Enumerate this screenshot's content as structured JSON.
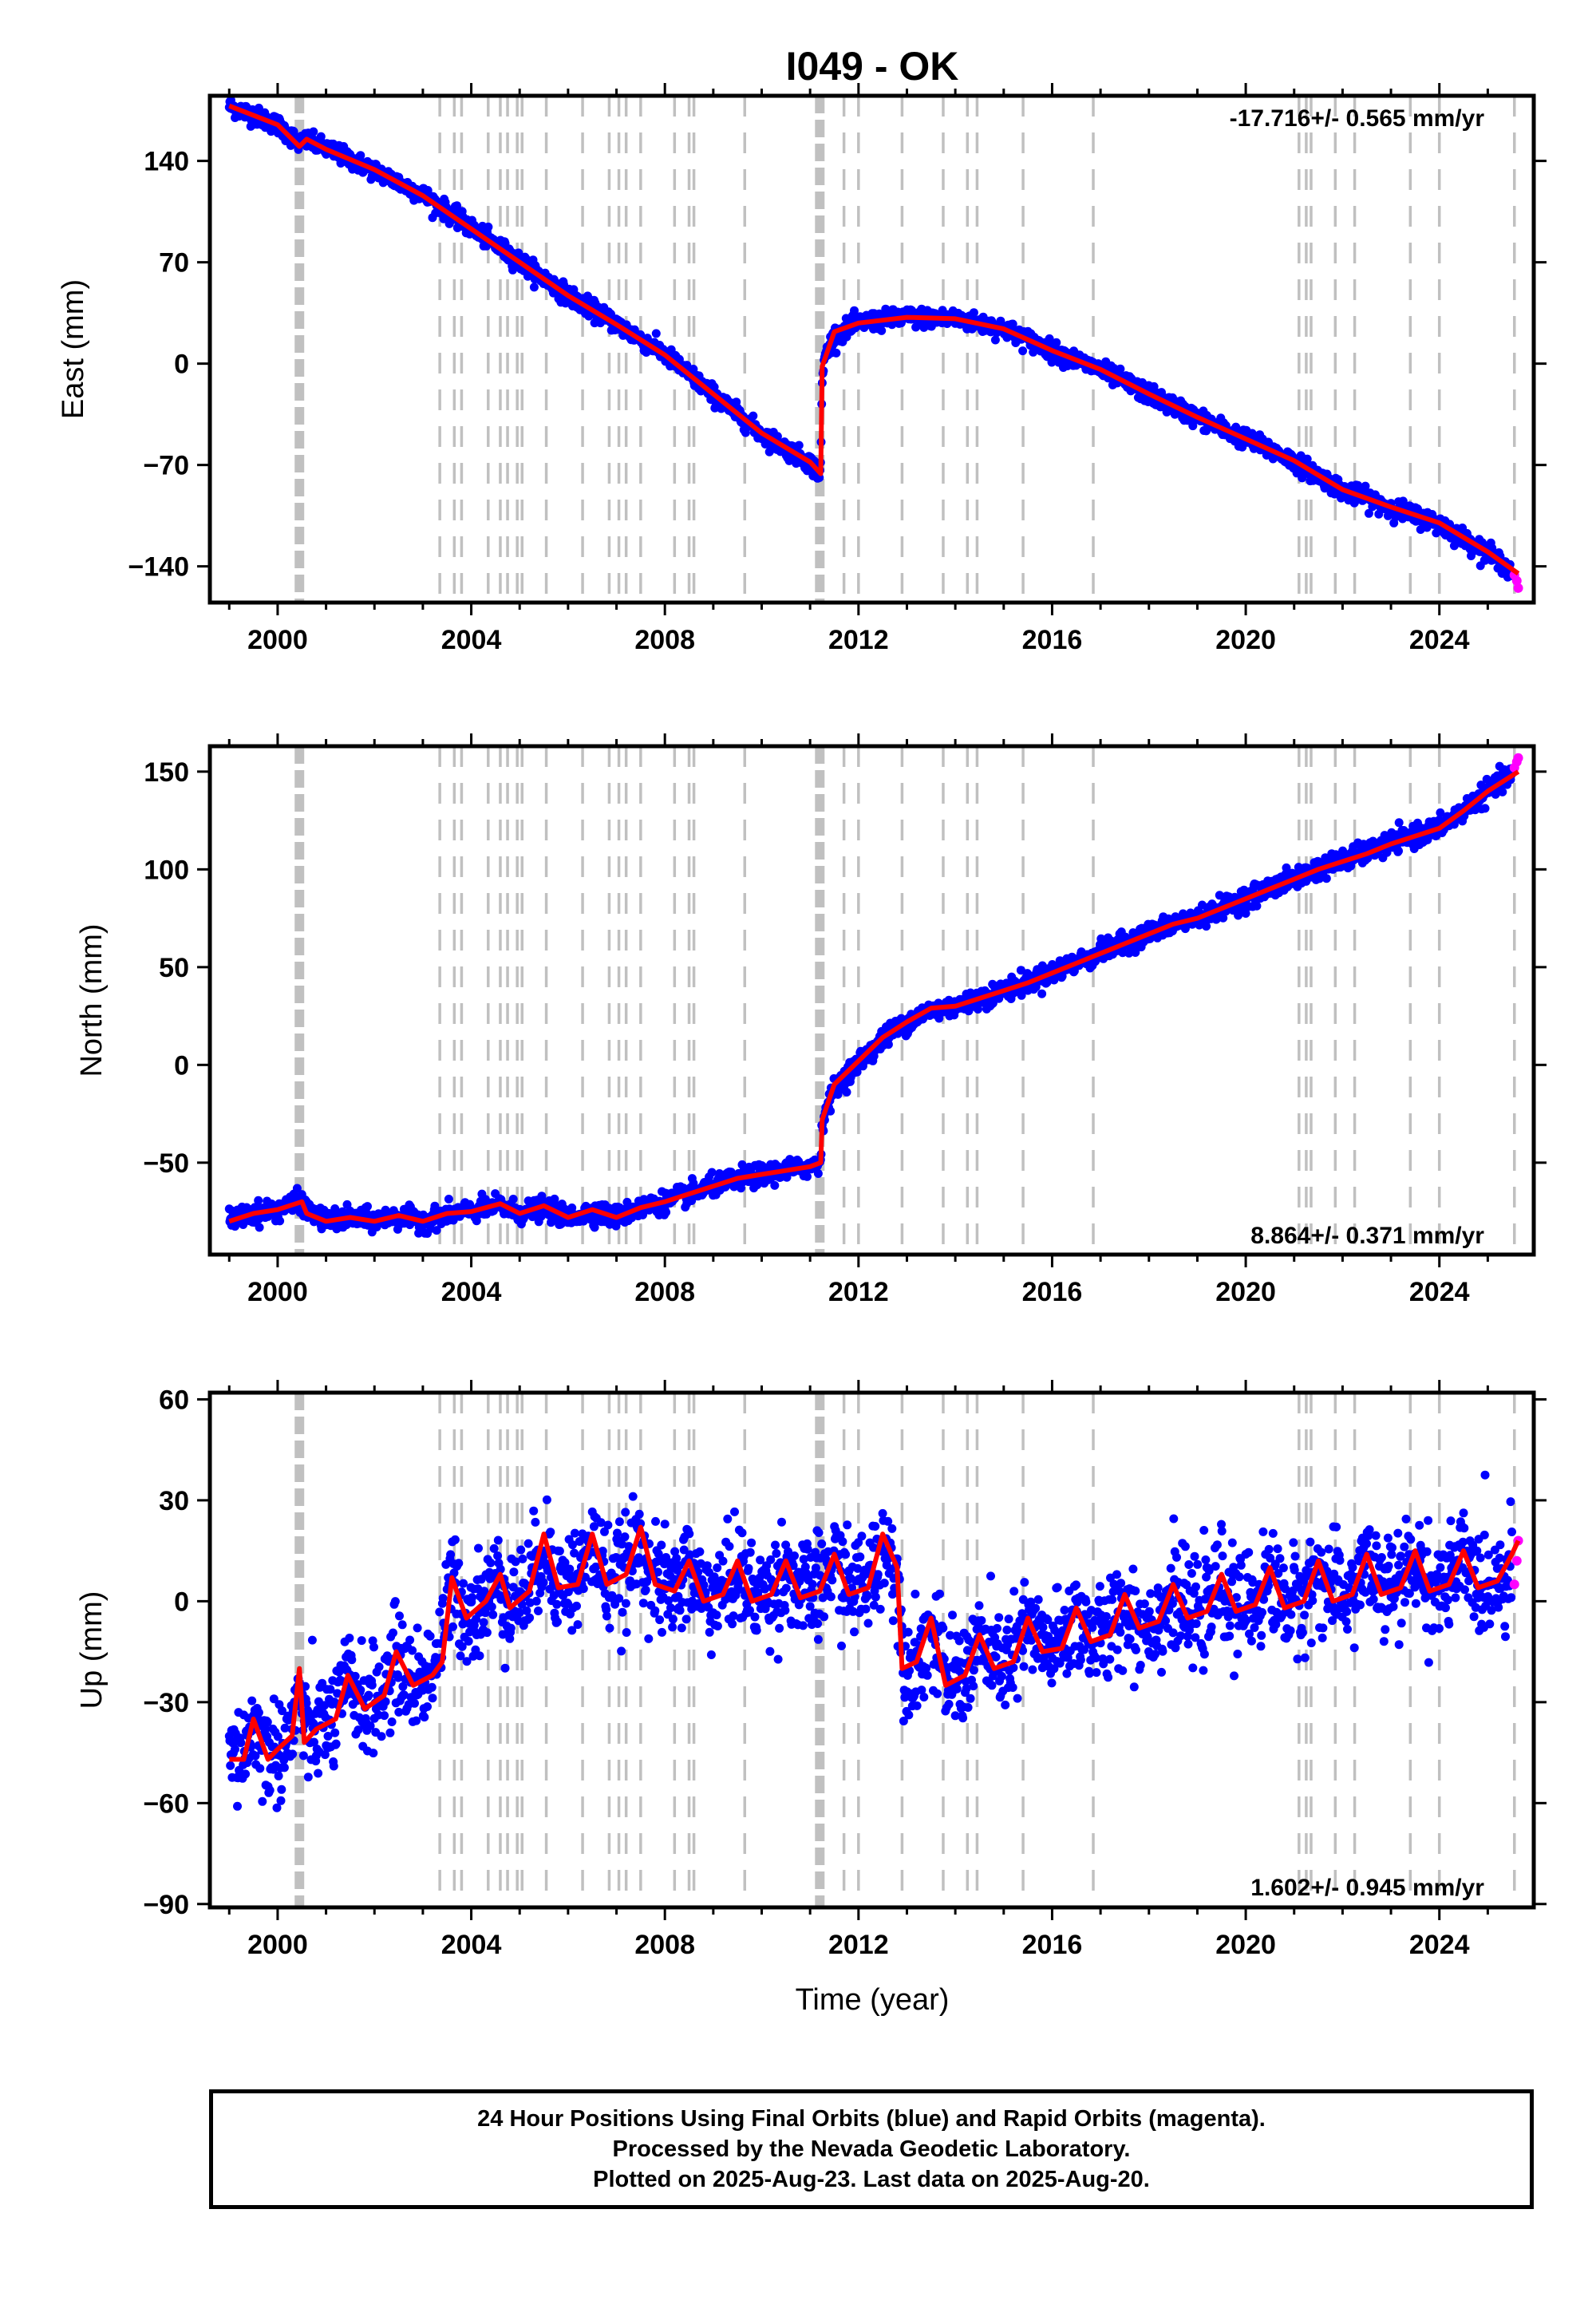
{
  "figure": {
    "title": "I049 - OK",
    "x_axis_label": "Time (year)"
  },
  "footer": {
    "line1": "24 Hour Positions Using Final Orbits (blue) and Rapid Orbits (magenta).",
    "line2": "Processed by the Nevada Geodetic Laboratory.",
    "line3": "Plotted on 2025-Aug-23. Last data on 2025-Aug-20."
  },
  "colors": {
    "final_orbits": "#0000ff",
    "rapid_orbits": "#ff00ff",
    "model_fit": "#ff0000",
    "event_lines": "#c0c0c0",
    "frame": "#000000"
  },
  "chart_data": [
    {
      "type": "scatter",
      "panel": "east",
      "ylabel": "East (mm)",
      "rate_label": "-17.716+/- 0.565 mm/yr",
      "xlim": [
        1998.6,
        2025.95
      ],
      "ylim": [
        -165,
        185
      ],
      "xticks": [
        2000,
        2004,
        2008,
        2012,
        2016,
        2020,
        2024
      ],
      "yticks": [
        140,
        70,
        0,
        -70,
        -140
      ],
      "ytick_labels": [
        "140",
        "70",
        "0",
        "−70",
        "−140"
      ],
      "grid": false,
      "series": [
        {
          "name": "Final Orbits (blue)",
          "x": [
            1999.0,
            2000.0,
            2000.4,
            2000.6,
            2001.0,
            2002.0,
            2003.0,
            2004.0,
            2005.0,
            2006.0,
            2007.0,
            2008.0,
            2009.0,
            2010.0,
            2011.0,
            2011.2,
            2011.3,
            2012.0,
            2013.0,
            2014.0,
            2015.0,
            2016.0,
            2017.0,
            2018.0,
            2019.0,
            2020.0,
            2021.0,
            2022.0,
            2023.0,
            2024.0,
            2025.0,
            2025.5
          ],
          "y": [
            178,
            165,
            158,
            152,
            150,
            132,
            118,
            95,
            72,
            48,
            28,
            8,
            -22,
            -50,
            -70,
            -80,
            8,
            28,
            32,
            31,
            25,
            8,
            -5,
            -22,
            -38,
            -52,
            -68,
            -88,
            -100,
            -112,
            -132,
            -145
          ]
        },
        {
          "name": "Rapid Orbits (magenta)",
          "x": [
            2025.55,
            2025.6,
            2025.63
          ],
          "y": [
            -146,
            -150,
            -155
          ]
        }
      ],
      "model_fit": {
        "x": [
          1999.0,
          2000.0,
          2000.45,
          2000.6,
          2001.0,
          2002.0,
          2003.0,
          2004.0,
          2005.0,
          2006.0,
          2007.0,
          2008.0,
          2009.0,
          2010.0,
          2011.0,
          2011.22,
          2011.25,
          2011.5,
          2012.0,
          2013.0,
          2014.0,
          2015.0,
          2016.0,
          2017.0,
          2018.0,
          2019.0,
          2020.0,
          2021.0,
          2022.0,
          2023.0,
          2024.0,
          2025.0,
          2025.63
        ],
        "y": [
          178,
          165,
          150,
          155,
          148,
          134,
          116,
          93,
          70,
          47,
          27,
          6,
          -21,
          -48,
          -68,
          -76,
          -2,
          22,
          28,
          32,
          31,
          24,
          9,
          -4,
          -21,
          -37,
          -52,
          -67,
          -87,
          -99,
          -110,
          -130,
          -145
        ]
      },
      "event_lines": [
        2000.45,
        2003.35,
        2003.65,
        2003.8,
        2004.35,
        2004.6,
        2004.75,
        2004.95,
        2005.05,
        2005.55,
        2006.3,
        2006.85,
        2007.05,
        2007.2,
        2007.5,
        2008.2,
        2008.5,
        2008.6,
        2009.65,
        2011.2,
        2011.7,
        2012.0,
        2012.9,
        2013.75,
        2014.25,
        2014.45,
        2015.4,
        2016.85,
        2021.1,
        2021.25,
        2021.35,
        2021.85,
        2022.25,
        2023.4,
        2024.0,
        2025.55
      ]
    },
    {
      "type": "scatter",
      "panel": "north",
      "ylabel": "North (mm)",
      "rate_label": "8.864+/- 0.371 mm/yr",
      "xlim": [
        1998.6,
        2025.95
      ],
      "ylim": [
        -97,
        163
      ],
      "xticks": [
        2000,
        2004,
        2008,
        2012,
        2016,
        2020,
        2024
      ],
      "yticks": [
        150,
        100,
        50,
        0,
        -50
      ],
      "ytick_labels": [
        "150",
        "100",
        "50",
        "0",
        "−50"
      ],
      "grid": false,
      "series": [
        {
          "name": "Final Orbits (blue)",
          "x": [
            1999.0,
            2000.0,
            2000.5,
            2001.0,
            2002.0,
            2003.0,
            2004.0,
            2005.0,
            2006.0,
            2007.0,
            2008.0,
            2009.0,
            2010.0,
            2011.0,
            2011.2,
            2011.3,
            2012.0,
            2013.0,
            2014.0,
            2015.0,
            2016.0,
            2017.0,
            2018.0,
            2019.0,
            2020.0,
            2021.0,
            2022.0,
            2023.0,
            2024.0,
            2025.0,
            2025.5
          ],
          "y": [
            -78,
            -74,
            -68,
            -80,
            -78,
            -80,
            -74,
            -75,
            -78,
            -77,
            -70,
            -62,
            -56,
            -52,
            -48,
            -25,
            0,
            22,
            30,
            38,
            48,
            58,
            68,
            76,
            86,
            96,
            106,
            114,
            122,
            140,
            150
          ]
        },
        {
          "name": "Rapid Orbits (magenta)",
          "x": [
            2025.55,
            2025.6,
            2025.63
          ],
          "y": [
            152,
            155,
            157
          ]
        }
      ],
      "model_fit": {
        "x": [
          1999.0,
          1999.5,
          2000.0,
          2000.5,
          2000.6,
          2001.0,
          2001.5,
          2002.0,
          2002.5,
          2003.0,
          2003.5,
          2004.0,
          2004.6,
          2005.0,
          2005.5,
          2006.0,
          2006.5,
          2007.0,
          2007.5,
          2008.0,
          2008.5,
          2009.0,
          2009.5,
          2010.0,
          2010.5,
          2011.0,
          2011.22,
          2011.25,
          2011.5,
          2012.0,
          2012.5,
          2013.0,
          2013.5,
          2014.0,
          2014.5,
          2015.0,
          2015.5,
          2016.0,
          2016.5,
          2017.0,
          2017.5,
          2018.0,
          2018.5,
          2019.0,
          2019.5,
          2020.0,
          2020.5,
          2021.0,
          2021.5,
          2022.0,
          2022.5,
          2023.0,
          2023.5,
          2024.0,
          2024.5,
          2025.0,
          2025.63
        ],
        "y": [
          -80,
          -76,
          -74,
          -70,
          -76,
          -80,
          -78,
          -80,
          -77,
          -80,
          -76,
          -75,
          -71,
          -76,
          -72,
          -78,
          -74,
          -78,
          -73,
          -70,
          -66,
          -62,
          -58,
          -56,
          -54,
          -52,
          -50,
          -28,
          -10,
          2,
          14,
          22,
          29,
          30,
          34,
          38,
          42,
          47,
          52,
          57,
          62,
          67,
          72,
          75,
          80,
          85,
          90,
          95,
          100,
          104,
          108,
          113,
          117,
          121,
          130,
          140,
          150
        ]
      },
      "event_lines": [
        2000.45,
        2003.35,
        2003.65,
        2003.8,
        2004.35,
        2004.6,
        2004.75,
        2004.95,
        2005.05,
        2005.55,
        2006.3,
        2006.85,
        2007.05,
        2007.2,
        2007.5,
        2008.2,
        2008.5,
        2008.6,
        2009.65,
        2011.2,
        2011.7,
        2012.0,
        2012.9,
        2013.75,
        2014.25,
        2014.45,
        2015.4,
        2016.85,
        2021.1,
        2021.25,
        2021.35,
        2021.85,
        2022.25,
        2023.4,
        2024.0,
        2025.55
      ]
    },
    {
      "type": "scatter",
      "panel": "up",
      "ylabel": "Up (mm)",
      "rate_label": "1.602+/- 0.945 mm/yr",
      "xlim": [
        1998.6,
        2025.95
      ],
      "ylim": [
        -91,
        62
      ],
      "xticks": [
        2000,
        2004,
        2008,
        2012,
        2016,
        2020,
        2024
      ],
      "yticks": [
        60,
        30,
        0,
        -30,
        -60,
        -90
      ],
      "ytick_labels": [
        "60",
        "30",
        "0",
        "−30",
        "−60",
        "−90"
      ],
      "grid": false,
      "series": [
        {
          "name": "Final Orbits (blue)",
          "x": [
            1999.0,
            1999.5,
            2000.0,
            2000.5,
            2001.0,
            2001.5,
            2002.0,
            2002.5,
            2003.0,
            2003.4,
            2004.0,
            2005.0,
            2006.0,
            2007.0,
            2008.0,
            2009.0,
            2010.0,
            2011.0,
            2012.0,
            2012.8,
            2013.0,
            2014.0,
            2015.0,
            2016.0,
            2017.0,
            2018.0,
            2019.0,
            2020.0,
            2021.0,
            2022.0,
            2023.0,
            2024.0,
            2025.0,
            2025.5
          ],
          "y": [
            -45,
            -40,
            -45,
            -35,
            -38,
            -28,
            -28,
            -22,
            -25,
            2,
            0,
            5,
            10,
            10,
            5,
            5,
            5,
            5,
            10,
            10,
            -18,
            -20,
            -15,
            -10,
            -8,
            -5,
            -2,
            0,
            2,
            5,
            6,
            6,
            7,
            8
          ]
        },
        {
          "name": "Rapid Orbits (magenta)",
          "x": [
            2025.55,
            2025.6,
            2025.63
          ],
          "y": [
            5,
            12,
            18
          ]
        }
      ],
      "model_fit": {
        "x": [
          1999.0,
          1999.3,
          1999.5,
          1999.8,
          2000.0,
          2000.3,
          2000.45,
          2000.55,
          2000.8,
          2001.2,
          2001.45,
          2001.8,
          2002.2,
          2002.45,
          2002.8,
          2003.2,
          2003.4,
          2003.6,
          2003.9,
          2004.3,
          2004.6,
          2004.8,
          2005.2,
          2005.5,
          2005.8,
          2006.2,
          2006.5,
          2006.8,
          2007.2,
          2007.5,
          2007.8,
          2008.2,
          2008.5,
          2008.8,
          2009.2,
          2009.5,
          2009.8,
          2010.2,
          2010.5,
          2010.8,
          2011.2,
          2011.5,
          2011.8,
          2012.2,
          2012.5,
          2012.8,
          2012.9,
          2013.2,
          2013.5,
          2013.8,
          2014.2,
          2014.5,
          2014.8,
          2015.2,
          2015.5,
          2015.8,
          2016.2,
          2016.5,
          2016.8,
          2017.2,
          2017.5,
          2017.8,
          2018.2,
          2018.5,
          2018.8,
          2019.2,
          2019.5,
          2019.8,
          2020.2,
          2020.5,
          2020.8,
          2021.2,
          2021.5,
          2021.8,
          2022.2,
          2022.5,
          2022.8,
          2023.2,
          2023.5,
          2023.8,
          2024.2,
          2024.5,
          2024.8,
          2025.2,
          2025.5,
          2025.63
        ],
        "y": [
          -47,
          -47,
          -35,
          -47,
          -44,
          -40,
          -20,
          -42,
          -38,
          -35,
          -22,
          -32,
          -28,
          -15,
          -25,
          -22,
          -18,
          7,
          -5,
          0,
          8,
          -2,
          3,
          20,
          4,
          5,
          20,
          5,
          8,
          22,
          5,
          3,
          12,
          0,
          2,
          12,
          0,
          2,
          12,
          1,
          3,
          14,
          2,
          4,
          20,
          10,
          -20,
          -18,
          -5,
          -25,
          -22,
          -10,
          -20,
          -18,
          -5,
          -15,
          -14,
          -2,
          -12,
          -10,
          2,
          -8,
          -6,
          5,
          -5,
          -3,
          8,
          -3,
          -1,
          10,
          -2,
          0,
          12,
          0,
          2,
          14,
          2,
          4,
          15,
          3,
          5,
          15,
          4,
          6,
          14,
          18
        ]
      },
      "event_lines": [
        2000.45,
        2003.35,
        2003.65,
        2003.8,
        2004.35,
        2004.6,
        2004.75,
        2004.95,
        2005.05,
        2005.55,
        2006.3,
        2006.85,
        2007.05,
        2007.2,
        2007.5,
        2008.2,
        2008.5,
        2008.6,
        2009.65,
        2011.2,
        2011.7,
        2012.0,
        2012.9,
        2013.75,
        2014.25,
        2014.45,
        2015.4,
        2016.85,
        2021.1,
        2021.25,
        2021.35,
        2021.85,
        2022.25,
        2023.4,
        2024.0,
        2025.55
      ]
    }
  ]
}
